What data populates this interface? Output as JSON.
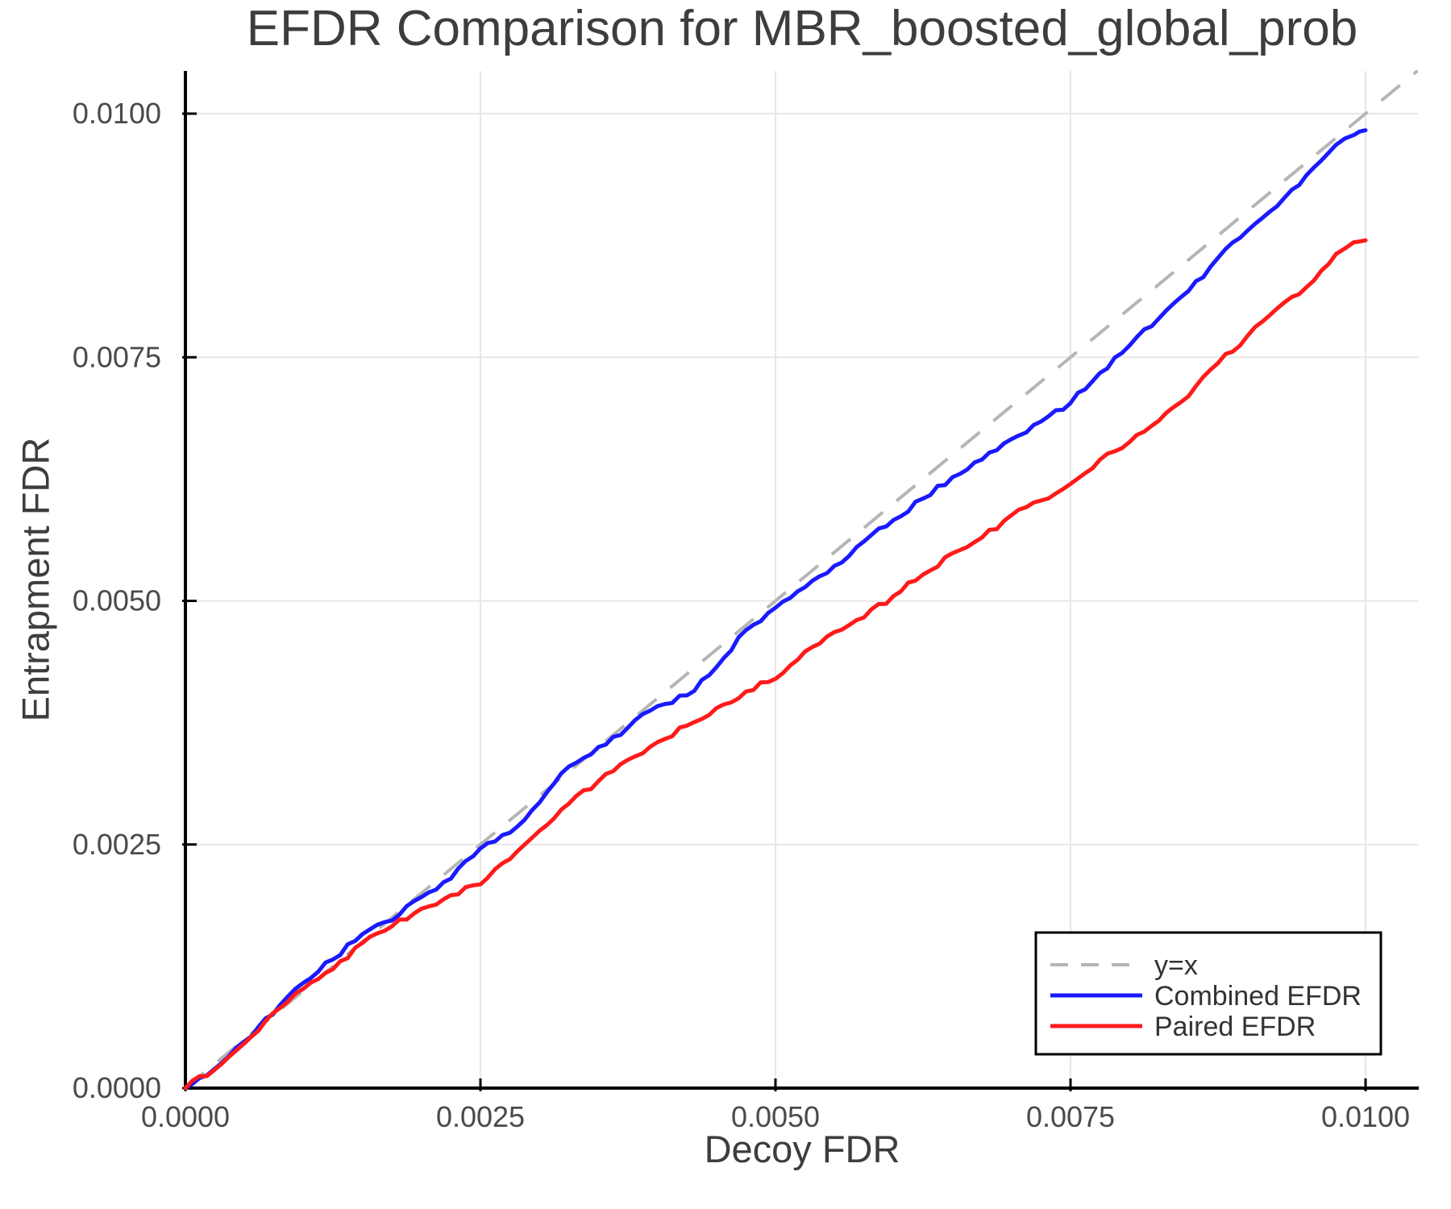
{
  "title": "EFDR Comparison for MBR_boosted_global_prob",
  "axes": {
    "xlabel": "Decoy FDR",
    "ylabel": "Entrapment FDR",
    "x_ticks": [
      0.0,
      0.0025,
      0.005,
      0.0075,
      0.01
    ],
    "x_tick_labels": [
      "0.0000",
      "0.0025",
      "0.0050",
      "0.0075",
      "0.0100"
    ],
    "y_ticks": [
      0.0,
      0.0025,
      0.005,
      0.0075,
      0.01
    ],
    "y_tick_labels": [
      "0.0000",
      "0.0025",
      "0.0050",
      "0.0075",
      "0.0100"
    ]
  },
  "colors": {
    "combined": "#1a1aff",
    "paired": "#ff1a1a",
    "diagonal": "#b5b5b5",
    "grid": "#e7e7e7",
    "axis": "#000000",
    "text": "#3d3d3d",
    "legend_border": "#000000",
    "legend_bg": "#ffffff"
  },
  "legend": {
    "entries": [
      {
        "label": "y=x",
        "color": "#b5b5b5",
        "dashed": true
      },
      {
        "label": "Combined EFDR",
        "color": "#1a1aff",
        "dashed": false
      },
      {
        "label": "Paired EFDR",
        "color": "#ff1a1a",
        "dashed": false
      }
    ],
    "position": "lower right"
  },
  "chart_data": {
    "type": "line",
    "title": "EFDR Comparison for MBR_boosted_global_prob",
    "xlabel": "Decoy FDR",
    "ylabel": "Entrapment FDR",
    "xlim": [
      0.0,
      0.01045
    ],
    "ylim": [
      0.0,
      0.01044
    ],
    "grid": true,
    "legend_position": "lower right",
    "series": [
      {
        "name": "y=x",
        "style": "dashed",
        "color": "#b5b5b5",
        "x": [
          0.0,
          0.01044
        ],
        "y": [
          0.0,
          0.01044
        ]
      },
      {
        "name": "Combined EFDR",
        "style": "solid",
        "color": "#1a1aff",
        "x": [
          0.0,
          0.0003,
          0.0005,
          0.0008,
          0.001,
          0.00125,
          0.0015,
          0.00175,
          0.002,
          0.00225,
          0.0025,
          0.00275,
          0.003,
          0.00325,
          0.0035,
          0.00375,
          0.004,
          0.00425,
          0.0045,
          0.00475,
          0.005,
          0.00525,
          0.0055,
          0.00575,
          0.006,
          0.00625,
          0.0065,
          0.00675,
          0.007,
          0.00725,
          0.0075,
          0.00775,
          0.008,
          0.00825,
          0.0085,
          0.00875,
          0.009,
          0.00925,
          0.0095,
          0.00975,
          0.0099,
          0.01
        ],
        "y": [
          0.0,
          0.00025,
          0.00048,
          0.00085,
          0.00108,
          0.00132,
          0.00158,
          0.00172,
          0.00196,
          0.00215,
          0.00246,
          0.00262,
          0.00293,
          0.0033,
          0.0035,
          0.0037,
          0.00392,
          0.00403,
          0.00432,
          0.0047,
          0.00493,
          0.00514,
          0.00536,
          0.00561,
          0.00583,
          0.00605,
          0.00627,
          0.00645,
          0.00666,
          0.00684,
          0.00703,
          0.00734,
          0.00762,
          0.0079,
          0.00818,
          0.00852,
          0.0088,
          0.00905,
          0.00937,
          0.00968,
          0.00978,
          0.00983
        ]
      },
      {
        "name": "Paired EFDR",
        "style": "solid",
        "color": "#ff1a1a",
        "x": [
          0.0,
          0.0003,
          0.0005,
          0.0008,
          0.001,
          0.00125,
          0.0015,
          0.00175,
          0.002,
          0.00225,
          0.0025,
          0.00275,
          0.003,
          0.00325,
          0.0035,
          0.00375,
          0.004,
          0.00425,
          0.0045,
          0.00475,
          0.005,
          0.00525,
          0.0055,
          0.00575,
          0.006,
          0.00625,
          0.0065,
          0.00675,
          0.007,
          0.00725,
          0.0075,
          0.00775,
          0.008,
          0.00825,
          0.0085,
          0.00875,
          0.009,
          0.00925,
          0.0095,
          0.00975,
          0.0099,
          0.01
        ],
        "y": [
          0.0,
          0.00024,
          0.00046,
          0.00082,
          0.00102,
          0.00122,
          0.00149,
          0.00166,
          0.00184,
          0.00198,
          0.00209,
          0.00235,
          0.00264,
          0.00292,
          0.00315,
          0.00337,
          0.00355,
          0.00372,
          0.0039,
          0.00407,
          0.0042,
          0.00448,
          0.00468,
          0.00483,
          0.00505,
          0.00527,
          0.00549,
          0.00565,
          0.00588,
          0.00603,
          0.0062,
          0.00645,
          0.00663,
          0.00685,
          0.0071,
          0.00744,
          0.00772,
          0.008,
          0.00822,
          0.00856,
          0.00868,
          0.0087
        ]
      }
    ]
  }
}
